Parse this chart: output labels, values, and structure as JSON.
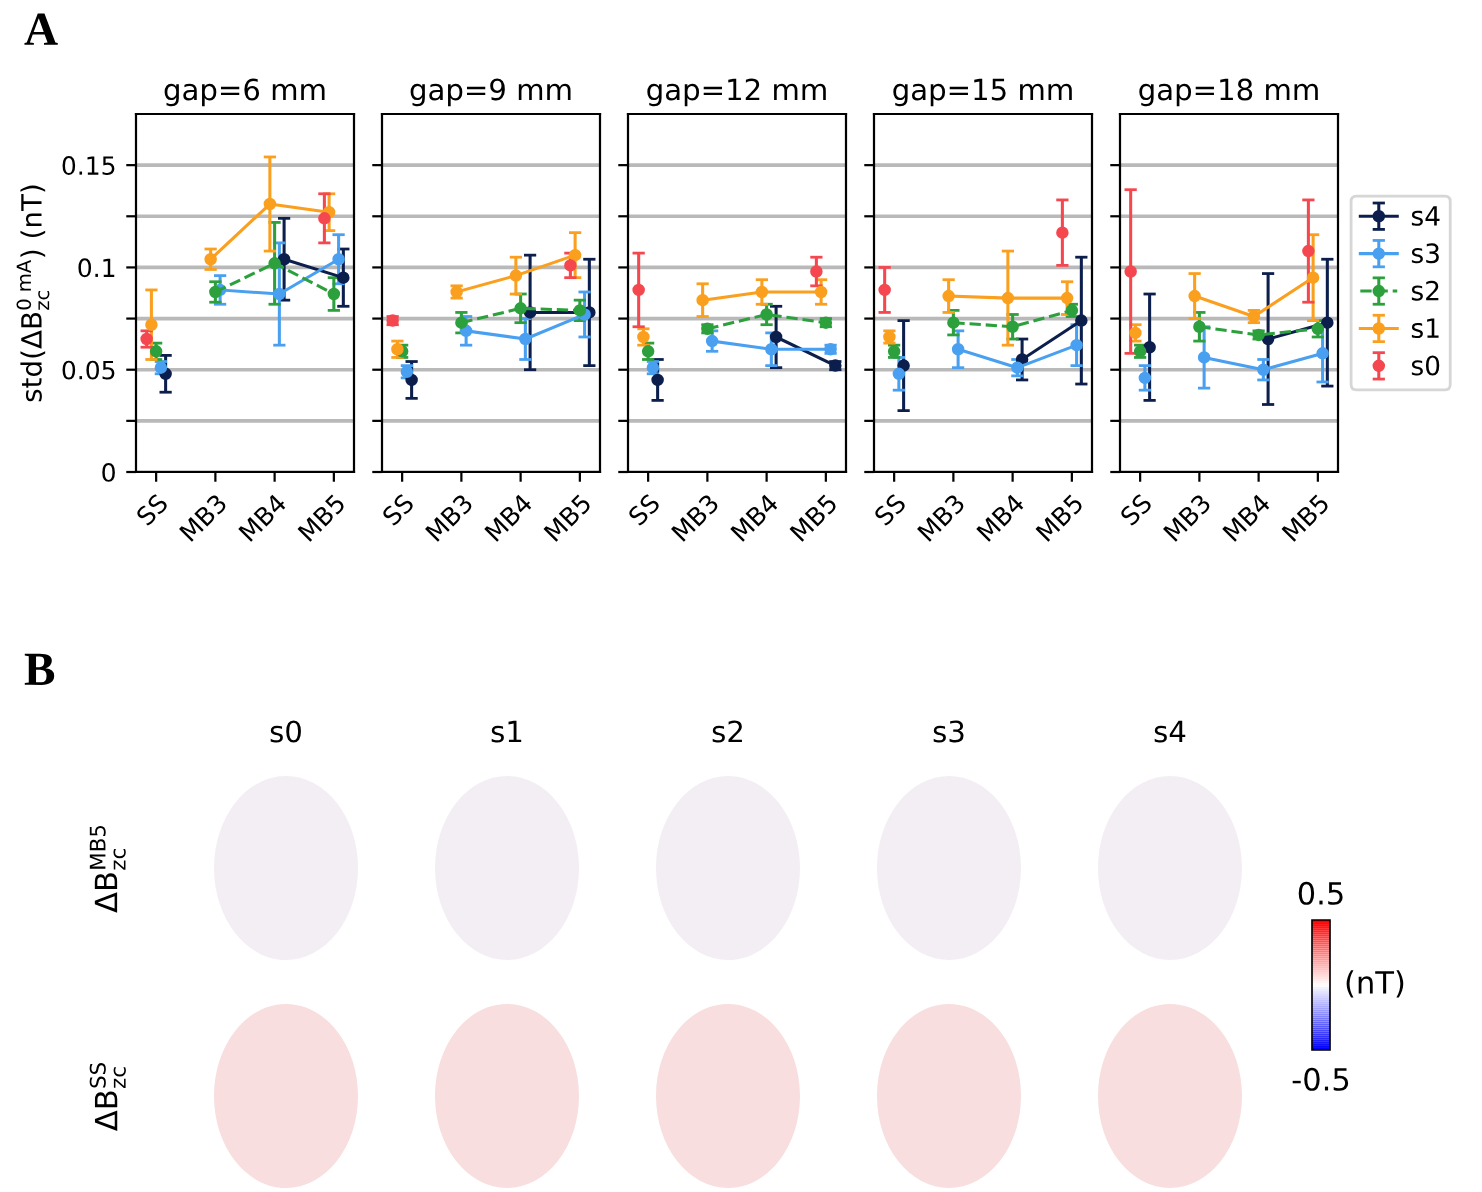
{
  "chart_data": [
    {
      "type": "line",
      "title": "gap=6 mm",
      "ylabel": "std(ΔB$^{0 mA}$$_{zc}$) (nT)",
      "annotations": [
        "A"
      ],
      "categories": [
        "SS",
        "MB3",
        "MB4",
        "MB5"
      ],
      "ylim": [
        0,
        0.175
      ],
      "yticks": [
        0,
        {
          "value": 0.025,
          "label": null
        },
        0.05,
        {
          "value": 0.075,
          "label": null
        },
        0.1,
        {
          "value": 0.125,
          "label": null
        },
        0.15
      ],
      "grid": "y",
      "marker": "circle",
      "line_style": "solid",
      "series": [
        {
          "type": "line",
          "color": "#0c1e4c",
          "values": [
            null,
            null,
            0.104,
            0.095
          ],
          "errors": [
            null,
            null,
            0.02,
            0.014
          ]
        },
        {
          "type": "line",
          "color": "#4aa0f0",
          "values": [
            null,
            0.089,
            0.087,
            0.104
          ],
          "errors": [
            null,
            0.007,
            0.025,
            0.012
          ]
        },
        {
          "type": "line",
          "color": "#2ca03c",
          "line_style": "dashed",
          "values": [
            null,
            0.088,
            0.102,
            0.087
          ],
          "errors": [
            null,
            0.005,
            0.02,
            0.008
          ]
        },
        {
          "type": "line",
          "color": "#fa9f1e",
          "values": [
            null,
            0.104,
            0.131,
            0.127
          ],
          "errors": [
            null,
            0.005,
            0.023,
            0.009
          ]
        },
        {
          "type": "scatter",
          "color": "#0c1e4c",
          "values": [
            0.048,
            null,
            null,
            null
          ],
          "errors": [
            0.009,
            null,
            null,
            null
          ]
        },
        {
          "type": "scatter",
          "color": "#4aa0f0",
          "values": [
            0.051,
            null,
            null,
            null
          ],
          "errors": [
            0.003,
            null,
            null,
            null
          ]
        },
        {
          "type": "scatter",
          "color": "#2ca03c",
          "values": [
            0.059,
            null,
            null,
            null
          ],
          "errors": [
            0.004,
            null,
            null,
            null
          ]
        },
        {
          "type": "scatter",
          "color": "#fa9f1e",
          "values": [
            0.072,
            null,
            null,
            null
          ],
          "errors": [
            0.017,
            null,
            null,
            null
          ]
        },
        {
          "type": "scatter",
          "color": "#f5474f",
          "values": [
            0.065,
            null,
            null,
            0.124
          ],
          "errors": [
            0.004,
            null,
            null,
            0.012
          ]
        }
      ]
    },
    {
      "type": "line",
      "title": "gap=9 mm",
      "categories": [
        "SS",
        "MB3",
        "MB4",
        "MB5"
      ],
      "ylim": [
        0,
        0.175
      ],
      "yticks": [
        0,
        {
          "value": 0.025,
          "label": null
        },
        0.05,
        {
          "value": 0.075,
          "label": null
        },
        0.1,
        {
          "value": 0.125,
          "label": null
        },
        0.15
      ],
      "tick_labels": "x",
      "grid": "y",
      "marker": "circle",
      "line_style": "solid",
      "series": [
        {
          "type": "line",
          "color": "#0c1e4c",
          "values": [
            null,
            null,
            0.078,
            0.078
          ],
          "errors": [
            null,
            null,
            0.028,
            0.026
          ]
        },
        {
          "type": "line",
          "color": "#4aa0f0",
          "values": [
            null,
            0.069,
            0.065,
            0.077
          ],
          "errors": [
            null,
            0.007,
            0.01,
            0.011
          ]
        },
        {
          "type": "line",
          "color": "#2ca03c",
          "line_style": "dashed",
          "values": [
            null,
            0.073,
            0.08,
            0.079
          ],
          "errors": [
            null,
            0.005,
            0.007,
            0.005
          ]
        },
        {
          "type": "line",
          "color": "#fa9f1e",
          "values": [
            null,
            0.088,
            0.096,
            0.106
          ],
          "errors": [
            null,
            0.003,
            0.009,
            0.011
          ]
        },
        {
          "type": "scatter",
          "color": "#0c1e4c",
          "values": [
            0.045,
            null,
            null,
            null
          ],
          "errors": [
            0.009,
            null,
            null,
            null
          ]
        },
        {
          "type": "scatter",
          "color": "#4aa0f0",
          "values": [
            0.049,
            null,
            null,
            null
          ],
          "errors": [
            0.003,
            null,
            null,
            null
          ]
        },
        {
          "type": "scatter",
          "color": "#2ca03c",
          "values": [
            0.059,
            null,
            null,
            null
          ],
          "errors": [
            0.003,
            null,
            null,
            null
          ]
        },
        {
          "type": "scatter",
          "color": "#fa9f1e",
          "values": [
            0.06,
            null,
            null,
            null
          ],
          "errors": [
            0.004,
            null,
            null,
            null
          ]
        },
        {
          "type": "scatter",
          "color": "#f5474f",
          "values": [
            0.074,
            null,
            null,
            0.101
          ],
          "errors": [
            0.002,
            null,
            null,
            0.006
          ]
        }
      ]
    },
    {
      "type": "line",
      "title": "gap=12 mm",
      "categories": [
        "SS",
        "MB3",
        "MB4",
        "MB5"
      ],
      "ylim": [
        0,
        0.175
      ],
      "yticks": [
        0,
        {
          "value": 0.025,
          "label": null
        },
        0.05,
        {
          "value": 0.075,
          "label": null
        },
        0.1,
        {
          "value": 0.125,
          "label": null
        },
        0.15
      ],
      "tick_labels": "x",
      "grid": "y",
      "marker": "circle",
      "line_style": "solid",
      "series": [
        {
          "type": "line",
          "color": "#0c1e4c",
          "values": [
            null,
            null,
            0.066,
            0.052
          ],
          "errors": [
            null,
            null,
            0.015,
            0.002
          ]
        },
        {
          "type": "line",
          "color": "#4aa0f0",
          "values": [
            null,
            0.064,
            0.06,
            0.06
          ],
          "errors": [
            null,
            0.005,
            0.008,
            0.002
          ]
        },
        {
          "type": "line",
          "color": "#2ca03c",
          "line_style": "dashed",
          "values": [
            null,
            0.07,
            0.077,
            0.073
          ],
          "errors": [
            null,
            0.002,
            0.005,
            0.002
          ]
        },
        {
          "type": "line",
          "color": "#fa9f1e",
          "values": [
            null,
            0.084,
            0.088,
            0.088
          ],
          "errors": [
            null,
            0.008,
            0.006,
            0.006
          ]
        },
        {
          "type": "scatter",
          "color": "#0c1e4c",
          "values": [
            0.045,
            null,
            null,
            null
          ],
          "errors": [
            0.01,
            null,
            null,
            null
          ]
        },
        {
          "type": "scatter",
          "color": "#4aa0f0",
          "values": [
            0.051,
            null,
            null,
            null
          ],
          "errors": [
            0.003,
            null,
            null,
            null
          ]
        },
        {
          "type": "scatter",
          "color": "#2ca03c",
          "values": [
            0.059,
            null,
            null,
            null
          ],
          "errors": [
            0.004,
            null,
            null,
            null
          ]
        },
        {
          "type": "scatter",
          "color": "#fa9f1e",
          "values": [
            0.066,
            null,
            null,
            null
          ],
          "errors": [
            0.004,
            null,
            null,
            null
          ]
        },
        {
          "type": "scatter",
          "color": "#f5474f",
          "values": [
            0.089,
            null,
            null,
            0.098
          ],
          "errors": [
            0.018,
            null,
            null,
            0.007
          ]
        }
      ]
    },
    {
      "type": "line",
      "title": "gap=15 mm",
      "categories": [
        "SS",
        "MB3",
        "MB4",
        "MB5"
      ],
      "ylim": [
        0,
        0.175
      ],
      "yticks": [
        0,
        {
          "value": 0.025,
          "label": null
        },
        0.05,
        {
          "value": 0.075,
          "label": null
        },
        0.1,
        {
          "value": 0.125,
          "label": null
        },
        0.15
      ],
      "tick_labels": "x",
      "grid": "y",
      "marker": "circle",
      "line_style": "solid",
      "series": [
        {
          "type": "line",
          "color": "#0c1e4c",
          "values": [
            null,
            null,
            0.055,
            0.074
          ],
          "errors": [
            null,
            null,
            0.01,
            0.031
          ]
        },
        {
          "type": "line",
          "color": "#4aa0f0",
          "values": [
            null,
            0.06,
            0.051,
            0.062
          ],
          "errors": [
            null,
            0.009,
            0.004,
            0.01
          ]
        },
        {
          "type": "line",
          "color": "#2ca03c",
          "line_style": "dashed",
          "values": [
            null,
            0.073,
            0.071,
            0.079
          ],
          "errors": [
            null,
            0.006,
            0.006,
            0.003
          ]
        },
        {
          "type": "line",
          "color": "#fa9f1e",
          "values": [
            null,
            0.086,
            0.085,
            0.085
          ],
          "errors": [
            null,
            0.008,
            0.023,
            0.008
          ]
        },
        {
          "type": "scatter",
          "color": "#0c1e4c",
          "values": [
            0.052,
            null,
            null,
            null
          ],
          "errors": [
            0.022,
            null,
            null,
            null
          ]
        },
        {
          "type": "scatter",
          "color": "#4aa0f0",
          "values": [
            0.048,
            null,
            null,
            null
          ],
          "errors": [
            0.008,
            null,
            null,
            null
          ]
        },
        {
          "type": "scatter",
          "color": "#2ca03c",
          "values": [
            0.059,
            null,
            null,
            null
          ],
          "errors": [
            0.003,
            null,
            null,
            null
          ]
        },
        {
          "type": "scatter",
          "color": "#fa9f1e",
          "values": [
            0.066,
            null,
            null,
            null
          ],
          "errors": [
            0.003,
            null,
            null,
            null
          ]
        },
        {
          "type": "scatter",
          "color": "#f5474f",
          "values": [
            0.089,
            null,
            null,
            0.117
          ],
          "errors": [
            0.011,
            null,
            null,
            0.016
          ]
        }
      ]
    },
    {
      "type": "line",
      "title": "gap=18 mm",
      "categories": [
        "SS",
        "MB3",
        "MB4",
        "MB5"
      ],
      "ylim": [
        0,
        0.175
      ],
      "yticks": [
        0,
        {
          "value": 0.025,
          "label": null
        },
        0.05,
        {
          "value": 0.075,
          "label": null
        },
        0.1,
        {
          "value": 0.125,
          "label": null
        },
        0.15
      ],
      "tick_labels": "x",
      "grid": "y",
      "marker": "circle",
      "line_style": "solid",
      "legend": "right",
      "series": [
        {
          "type": "line",
          "name": "s4",
          "color": "#0c1e4c",
          "values": [
            null,
            null,
            0.065,
            0.073
          ],
          "errors": [
            null,
            null,
            0.032,
            0.031
          ]
        },
        {
          "type": "line",
          "name": "s3",
          "color": "#4aa0f0",
          "values": [
            null,
            0.056,
            0.05,
            0.058
          ],
          "errors": [
            null,
            0.015,
            0.005,
            0.014
          ]
        },
        {
          "type": "line",
          "name": "s2",
          "color": "#2ca03c",
          "line_style": "dashed",
          "values": [
            null,
            0.071,
            0.067,
            0.07
          ],
          "errors": [
            null,
            0.007,
            0.002,
            0.004
          ]
        },
        {
          "type": "line",
          "name": "s1",
          "color": "#fa9f1e",
          "values": [
            null,
            0.086,
            0.076,
            0.095
          ],
          "errors": [
            null,
            0.011,
            0.003,
            0.021
          ]
        },
        {
          "type": "scatter",
          "color": "#0c1e4c",
          "values": [
            0.061,
            null,
            null,
            null
          ],
          "errors": [
            0.026,
            null,
            null,
            null
          ]
        },
        {
          "type": "scatter",
          "color": "#4aa0f0",
          "values": [
            0.046,
            null,
            null,
            null
          ],
          "errors": [
            0.006,
            null,
            null,
            null
          ]
        },
        {
          "type": "scatter",
          "color": "#2ca03c",
          "values": [
            0.059,
            null,
            null,
            null
          ],
          "errors": [
            0.003,
            null,
            null,
            null
          ]
        },
        {
          "type": "scatter",
          "color": "#fa9f1e",
          "values": [
            0.068,
            null,
            null,
            null
          ],
          "errors": [
            0.004,
            null,
            null,
            null
          ]
        },
        {
          "type": "scatter",
          "name": "s0",
          "color": "#f5474f",
          "values": [
            0.098,
            null,
            null,
            0.108
          ],
          "errors": [
            0.04,
            null,
            null,
            0.025
          ]
        }
      ]
    },
    {
      "type": "other",
      "annotations": [
        "B",
        "0.5",
        "-0.5"
      ],
      "categories": [
        "s0",
        "s1",
        "s2",
        "s3",
        "s4"
      ],
      "y_categories": [
        "ΔB$^{MB5}$$_{zc}$",
        "ΔB$^{SS}$$_{zc}$"
      ],
      "clabel": "(nT)"
    }
  ]
}
